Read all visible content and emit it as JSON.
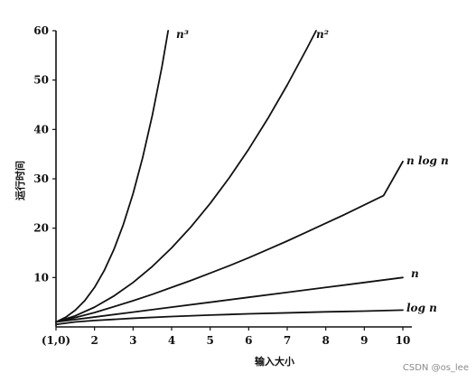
{
  "chart_data": {
    "type": "line",
    "title": "",
    "xlabel": "输入大小",
    "ylabel": "运行时间",
    "xlim": [
      1,
      10
    ],
    "ylim": [
      0,
      60
    ],
    "x_ticks": [
      {
        "value": 1,
        "label": "(1,0)"
      },
      {
        "value": 2,
        "label": "2"
      },
      {
        "value": 3,
        "label": "3"
      },
      {
        "value": 4,
        "label": "4"
      },
      {
        "value": 5,
        "label": "5"
      },
      {
        "value": 6,
        "label": "6"
      },
      {
        "value": 7,
        "label": "7"
      },
      {
        "value": 8,
        "label": "8"
      },
      {
        "value": 9,
        "label": "9"
      },
      {
        "value": 10,
        "label": "10"
      }
    ],
    "y_ticks": [
      {
        "value": 10,
        "label": "10"
      },
      {
        "value": 20,
        "label": "20"
      },
      {
        "value": 30,
        "label": "30"
      },
      {
        "value": 40,
        "label": "40"
      },
      {
        "value": 50,
        "label": "50"
      },
      {
        "value": 60,
        "label": "60"
      }
    ],
    "grid": false,
    "legend": "none",
    "series": [
      {
        "name": "n³",
        "x": [
          1,
          1.25,
          1.5,
          1.75,
          2,
          2.25,
          2.5,
          2.75,
          3,
          3.25,
          3.5,
          3.75,
          3.91
        ],
        "y": [
          1,
          1.95,
          3.38,
          5.36,
          8,
          11.39,
          15.63,
          20.8,
          27,
          34.33,
          42.88,
          52.73,
          60
        ]
      },
      {
        "name": "n²",
        "x": [
          1,
          1.5,
          2,
          2.5,
          3,
          3.5,
          4,
          4.5,
          5,
          5.5,
          6,
          6.5,
          7,
          7.5,
          7.75
        ],
        "y": [
          1,
          2.25,
          4,
          6.25,
          9,
          12.25,
          16,
          20.25,
          25,
          30.25,
          36,
          42.25,
          49,
          56.25,
          60
        ]
      },
      {
        "name": "n log n",
        "x": [
          1,
          1.5,
          2,
          2.5,
          3,
          3.5,
          4,
          4.5,
          5,
          5.5,
          6,
          6.5,
          7,
          7.5,
          8,
          8.5,
          9,
          9.5,
          10
        ],
        "y": [
          1,
          1.9,
          2.9,
          4.1,
          5.3,
          6.6,
          8,
          9.4,
          10.9,
          12.4,
          14,
          15.7,
          17.4,
          19.2,
          21,
          22.8,
          24.7,
          26.6,
          33.5
        ]
      },
      {
        "name": "n",
        "x": [
          1,
          2,
          3,
          4,
          5,
          6,
          7,
          8,
          9,
          10
        ],
        "y": [
          1,
          2,
          3,
          4,
          5,
          6,
          7,
          8,
          9,
          10
        ]
      },
      {
        "name": "log n",
        "x": [
          1,
          1.5,
          2,
          3,
          4,
          5,
          6,
          7,
          8,
          9,
          10
        ],
        "y": [
          0.5,
          1,
          1.3,
          1.75,
          2.1,
          2.4,
          2.65,
          2.85,
          3.05,
          3.2,
          3.4
        ]
      }
    ],
    "labels": [
      {
        "text": "n³",
        "series": "n³"
      },
      {
        "text": "n²",
        "series": "n²"
      },
      {
        "text": "n log n",
        "series": "n log n"
      },
      {
        "text": "n",
        "series": "n"
      },
      {
        "text": "log n",
        "series": "log n"
      }
    ]
  },
  "watermark": "CSDN @os_lee"
}
